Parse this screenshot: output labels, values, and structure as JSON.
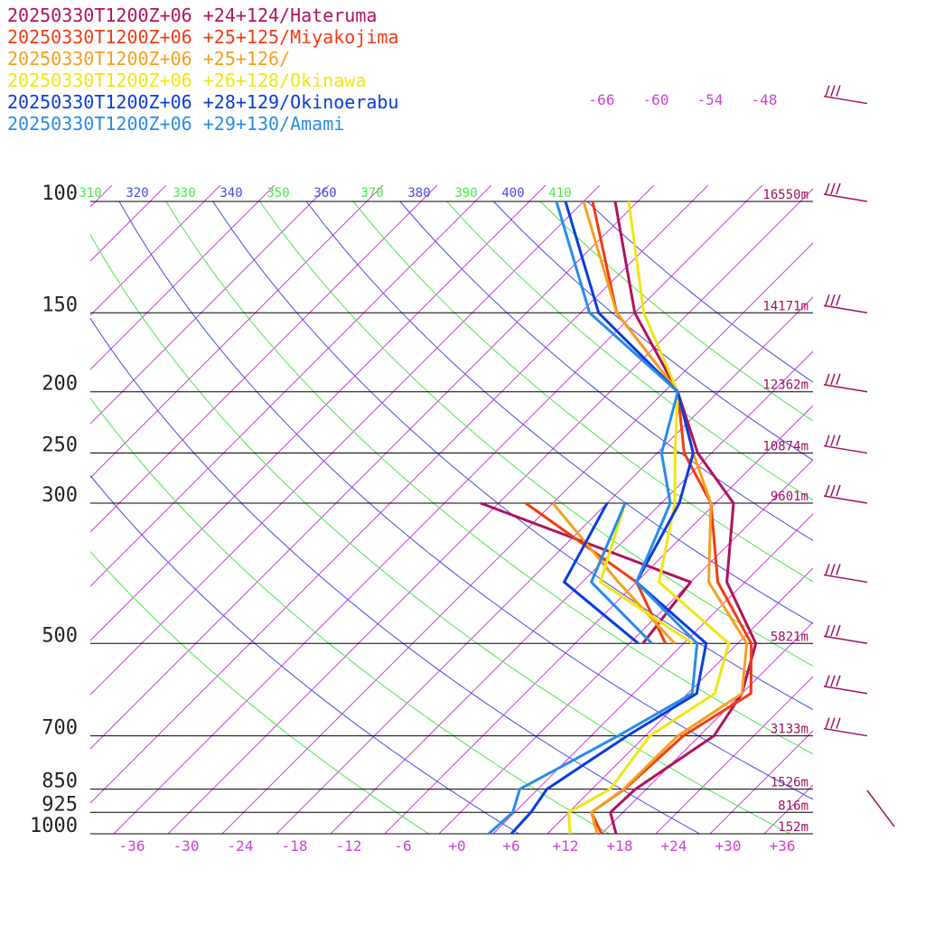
{
  "chart_data": {
    "type": "line",
    "title": "",
    "legend": [
      {
        "label": "20250330T1200Z+06 +24+124/Hateruma",
        "color": "#b0125e"
      },
      {
        "label": "20250330T1200Z+06 +25+125/Miyakojima",
        "color": "#f03c14"
      },
      {
        "label": "20250330T1200Z+06 +25+126/",
        "color": "#f5a01e"
      },
      {
        "label": "20250330T1200Z+06 +26+128/Okinawa",
        "color": "#f0e614"
      },
      {
        "label": "20250330T1200Z+06 +28+129/Okinoerabu",
        "color": "#0a3cdc"
      },
      {
        "label": "20250330T1200Z+06 +29+130/Amami",
        "color": "#288ce6"
      }
    ],
    "pressure_levels": [
      {
        "label": "100",
        "height": "16550m"
      },
      {
        "label": "150",
        "height": "14171m"
      },
      {
        "label": "200",
        "height": "12362m"
      },
      {
        "label": "250",
        "height": "10874m"
      },
      {
        "label": "300",
        "height": "9601m"
      },
      {
        "label": "500",
        "height": "5821m"
      },
      {
        "label": "700",
        "height": "3133m"
      },
      {
        "label": "850",
        "height": "1526m"
      },
      {
        "label": "925",
        "height": "816m"
      },
      {
        "label": "1000",
        "height": "152m"
      }
    ],
    "x_ticks": [
      "-36",
      "-30",
      "-24",
      "-18",
      "-12",
      "-6",
      "+0",
      "+6",
      "+12",
      "+18",
      "+24",
      "+30",
      "+36"
    ],
    "upper_temp_labels": [
      "-66",
      "-60",
      "-54",
      "-48"
    ],
    "theta_labels": [
      "310",
      "320",
      "330",
      "340",
      "350",
      "360",
      "370",
      "380",
      "390",
      "400",
      "410"
    ],
    "colors": {
      "isotherm": "#d040d8",
      "theta_dry": "#4a4ae8",
      "theta_moist": "#4ae84a",
      "isobar": "#000000",
      "height_label": "#a01060",
      "barb": "#a01060"
    },
    "series": [
      {
        "name": "Hateruma",
        "color": "#b0125e",
        "temp": [
          [
            1000,
            17.6
          ],
          [
            925,
            14.6
          ],
          [
            850,
            14.8
          ],
          [
            700,
            17.6
          ],
          [
            600,
            16.0
          ],
          [
            500,
            12.0
          ],
          [
            400,
            2.0
          ],
          [
            300,
            -6.0
          ],
          [
            250,
            -15.5
          ],
          [
            200,
            -24.5
          ],
          [
            150,
            -38.0
          ],
          [
            100,
            -52.5
          ]
        ],
        "dew": [
          [
            500,
            -0.5
          ],
          [
            400,
            -2.0
          ],
          [
            300,
            -34.0
          ]
        ]
      },
      {
        "name": "Miyakojima",
        "color": "#f03c14",
        "temp": [
          [
            1000,
            16.0
          ],
          [
            925,
            12.5
          ],
          [
            850,
            13.6
          ],
          [
            700,
            14.2
          ],
          [
            600,
            17.0
          ],
          [
            500,
            11.5
          ],
          [
            400,
            1.0
          ],
          [
            300,
            -8.5
          ],
          [
            250,
            -17.0
          ],
          [
            200,
            -24.5
          ],
          [
            150,
            -40.0
          ],
          [
            100,
            -55.0
          ]
        ],
        "dew": [
          [
            500,
            2.0
          ],
          [
            400,
            -8.0
          ],
          [
            300,
            -29.0
          ]
        ]
      },
      {
        "name": "+25+126",
        "color": "#f5a01e",
        "temp": [
          [
            1000,
            15.5
          ],
          [
            925,
            12.5
          ],
          [
            850,
            13.5
          ],
          [
            700,
            13.6
          ],
          [
            600,
            16.0
          ],
          [
            500,
            11.0
          ],
          [
            400,
            0.0
          ],
          [
            300,
            -8.5
          ],
          [
            250,
            -16.0
          ],
          [
            200,
            -24.5
          ],
          [
            150,
            -40.0
          ],
          [
            100,
            -56.0
          ]
        ],
        "dew": [
          [
            500,
            3.0
          ],
          [
            400,
            -10.0
          ],
          [
            300,
            -26.0
          ]
        ]
      },
      {
        "name": "Okinawa",
        "color": "#f0e614",
        "temp": [
          [
            1000,
            12.5
          ],
          [
            925,
            10.0
          ],
          [
            850,
            12.0
          ],
          [
            700,
            10.5
          ],
          [
            600,
            13.0
          ],
          [
            500,
            9.0
          ],
          [
            400,
            -5.5
          ],
          [
            300,
            -12.5
          ],
          [
            250,
            -18.0
          ],
          [
            200,
            -24.5
          ],
          [
            150,
            -37.0
          ],
          [
            100,
            -51.0
          ]
        ],
        "dew": [
          [
            500,
            5.0
          ],
          [
            400,
            -12.0
          ],
          [
            300,
            -18.0
          ]
        ]
      },
      {
        "name": "Okinoerabu",
        "color": "#0a3cdc",
        "temp": [
          [
            1000,
            6.0
          ],
          [
            925,
            5.8
          ],
          [
            850,
            5.0
          ],
          [
            700,
            8.0
          ],
          [
            600,
            11.0
          ],
          [
            500,
            6.5
          ],
          [
            400,
            -8.0
          ],
          [
            300,
            -12.0
          ],
          [
            250,
            -16.0
          ],
          [
            200,
            -24.5
          ],
          [
            150,
            -42.0
          ],
          [
            100,
            -58.0
          ]
        ],
        "dew": [
          [
            500,
            -1.0
          ],
          [
            400,
            -16.0
          ],
          [
            300,
            -20.0
          ]
        ]
      },
      {
        "name": "Amami",
        "color": "#288ce6",
        "temp": [
          [
            1000,
            3.5
          ],
          [
            925,
            3.8
          ],
          [
            850,
            2.0
          ],
          [
            700,
            7.0
          ],
          [
            600,
            10.5
          ],
          [
            500,
            5.5
          ],
          [
            400,
            -8.0
          ],
          [
            300,
            -13.0
          ],
          [
            250,
            -19.5
          ],
          [
            200,
            -24.5
          ],
          [
            150,
            -43.0
          ],
          [
            100,
            -59.0
          ]
        ],
        "dew": [
          [
            500,
            0.5
          ],
          [
            400,
            -13.0
          ],
          [
            300,
            -18.0
          ]
        ]
      }
    ]
  }
}
